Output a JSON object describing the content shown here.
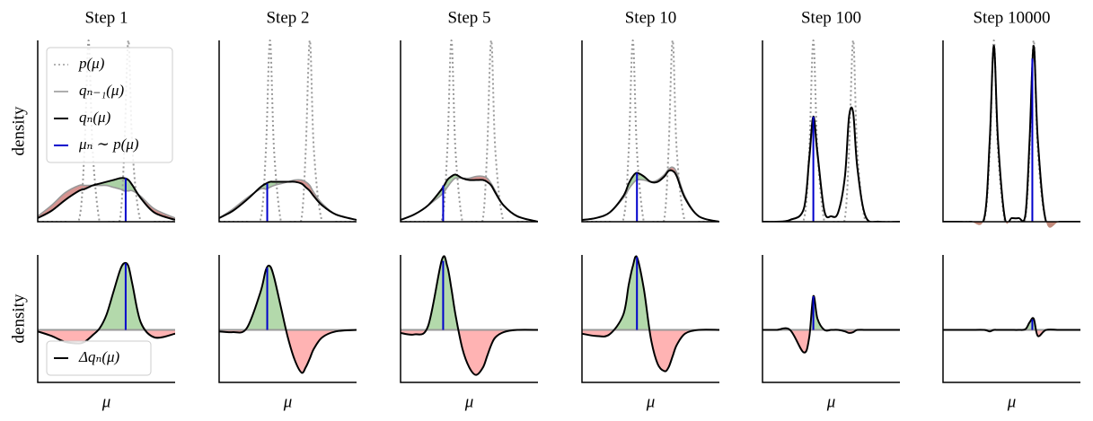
{
  "chart_data": [
    {
      "type": "line",
      "title": "Step 1",
      "y_label": "density",
      "legend": "upper left",
      "xlim": [
        0,
        1
      ],
      "ylim": [
        0,
        1
      ],
      "x": [
        0,
        0.1,
        0.2,
        0.3,
        0.34,
        0.37,
        0.4,
        0.45,
        0.5,
        0.55,
        0.6,
        0.63,
        0.66,
        0.69,
        0.75,
        0.85,
        1
      ],
      "series": [
        {
          "name": "p(μ)",
          "color": "#999999",
          "style": "dotted",
          "values": [
            0,
            0,
            0,
            0.01,
            0.39,
            1,
            0.39,
            0,
            0,
            0,
            0.02,
            0.39,
            1,
            0.39,
            0,
            0,
            0
          ]
        },
        {
          "name": "qₙ₋₁(μ)",
          "color": "#999999",
          "style": "solid",
          "values": [
            0.03,
            0.09,
            0.16,
            0.2,
            0.2,
            0.2,
            0.2,
            0.2,
            0.2,
            0.19,
            0.18,
            0.17,
            0.17,
            0.17,
            0.14,
            0.07,
            0.02
          ]
        },
        {
          "name": "qₙ(μ)",
          "color": "#000000",
          "style": "solid",
          "values": [
            0.02,
            0.06,
            0.12,
            0.17,
            0.18,
            0.19,
            0.2,
            0.21,
            0.22,
            0.23,
            0.24,
            0.24,
            0.23,
            0.2,
            0.13,
            0.05,
            0.01
          ]
        }
      ],
      "sample": {
        "name": "μₙ ∼ p(μ)",
        "color": "#0000cc",
        "x": 0.64,
        "value": 0.24
      }
    },
    {
      "type": "line",
      "title": "Step 2",
      "xlim": [
        0,
        1
      ],
      "ylim": [
        0,
        1
      ],
      "x": [
        0,
        0.1,
        0.2,
        0.3,
        0.34,
        0.37,
        0.4,
        0.45,
        0.5,
        0.55,
        0.6,
        0.63,
        0.66,
        0.69,
        0.75,
        0.85,
        1
      ],
      "series": [
        {
          "color": "#999999",
          "style": "dotted",
          "values": [
            0,
            0,
            0,
            0.01,
            0.39,
            1,
            0.39,
            0,
            0,
            0,
            0.02,
            0.39,
            1,
            0.39,
            0,
            0,
            0
          ]
        },
        {
          "color": "#999999",
          "style": "solid",
          "values": [
            0.02,
            0.07,
            0.13,
            0.18,
            0.18,
            0.19,
            0.2,
            0.21,
            0.22,
            0.23,
            0.23,
            0.22,
            0.2,
            0.16,
            0.1,
            0.04,
            0.01
          ]
        },
        {
          "color": "#000000",
          "style": "solid",
          "values": [
            0.02,
            0.06,
            0.12,
            0.19,
            0.21,
            0.22,
            0.22,
            0.22,
            0.22,
            0.22,
            0.21,
            0.19,
            0.17,
            0.14,
            0.09,
            0.04,
            0.01
          ]
        }
      ],
      "sample": {
        "color": "#0000cc",
        "x": 0.35,
        "value": 0.21
      }
    },
    {
      "type": "line",
      "title": "Step 5",
      "xlim": [
        0,
        1
      ],
      "ylim": [
        0,
        1
      ],
      "x": [
        0,
        0.1,
        0.2,
        0.3,
        0.34,
        0.37,
        0.4,
        0.45,
        0.5,
        0.55,
        0.6,
        0.63,
        0.66,
        0.69,
        0.75,
        0.85,
        1
      ],
      "series": [
        {
          "color": "#999999",
          "style": "dotted",
          "values": [
            0,
            0,
            0,
            0.01,
            0.39,
            1,
            0.39,
            0,
            0,
            0,
            0.02,
            0.39,
            1,
            0.39,
            0,
            0,
            0
          ]
        },
        {
          "color": "#999999",
          "style": "solid",
          "values": [
            0.01,
            0.04,
            0.09,
            0.15,
            0.19,
            0.22,
            0.24,
            0.24,
            0.24,
            0.25,
            0.25,
            0.24,
            0.21,
            0.17,
            0.09,
            0.03,
            0
          ]
        },
        {
          "color": "#000000",
          "style": "solid",
          "values": [
            0.01,
            0.04,
            0.09,
            0.18,
            0.23,
            0.25,
            0.26,
            0.24,
            0.23,
            0.23,
            0.23,
            0.22,
            0.2,
            0.16,
            0.09,
            0.03,
            0
          ]
        }
      ],
      "sample": {
        "color": "#0000cc",
        "x": 0.31,
        "value": 0.2
      }
    },
    {
      "type": "line",
      "title": "Step 10",
      "xlim": [
        0,
        1
      ],
      "ylim": [
        0,
        1
      ],
      "x": [
        0,
        0.1,
        0.2,
        0.3,
        0.34,
        0.37,
        0.4,
        0.45,
        0.5,
        0.55,
        0.6,
        0.63,
        0.66,
        0.69,
        0.75,
        0.85,
        1
      ],
      "series": [
        {
          "color": "#999999",
          "style": "dotted",
          "values": [
            0,
            0,
            0,
            0.01,
            0.39,
            1,
            0.39,
            0,
            0,
            0,
            0.02,
            0.39,
            1,
            0.39,
            0,
            0,
            0
          ]
        },
        {
          "color": "#999999",
          "style": "solid",
          "values": [
            0.01,
            0.02,
            0.05,
            0.13,
            0.18,
            0.21,
            0.23,
            0.23,
            0.22,
            0.23,
            0.26,
            0.29,
            0.3,
            0.27,
            0.14,
            0.03,
            0
          ]
        },
        {
          "color": "#000000",
          "style": "solid",
          "values": [
            0.01,
            0.02,
            0.05,
            0.14,
            0.21,
            0.25,
            0.27,
            0.25,
            0.22,
            0.22,
            0.25,
            0.28,
            0.28,
            0.25,
            0.13,
            0.03,
            0
          ]
        }
      ],
      "sample": {
        "color": "#0000cc",
        "x": 0.4,
        "value": 0.27
      }
    },
    {
      "type": "line",
      "title": "Step 100",
      "xlim": [
        0,
        1
      ],
      "ylim": [
        0,
        1
      ],
      "x": [
        0,
        0.1,
        0.2,
        0.3,
        0.34,
        0.37,
        0.4,
        0.45,
        0.5,
        0.55,
        0.6,
        0.63,
        0.66,
        0.69,
        0.75,
        0.85,
        1
      ],
      "series": [
        {
          "color": "#999999",
          "style": "dotted",
          "values": [
            0,
            0,
            0,
            0.01,
            0.39,
            1,
            0.39,
            0,
            0,
            0,
            0.02,
            0.39,
            1,
            0.39,
            0,
            0,
            0
          ]
        },
        {
          "color": "#999999",
          "style": "solid",
          "values": [
            0,
            0,
            0.01,
            0.07,
            0.33,
            0.54,
            0.36,
            0.06,
            0.03,
            0.05,
            0.25,
            0.58,
            0.6,
            0.3,
            0.03,
            0,
            0
          ]
        },
        {
          "color": "#000000",
          "style": "solid",
          "values": [
            0,
            0,
            0.01,
            0.07,
            0.35,
            0.58,
            0.38,
            0.06,
            0.03,
            0.05,
            0.25,
            0.58,
            0.6,
            0.3,
            0.03,
            0,
            0
          ]
        }
      ],
      "sample": {
        "color": "#0000cc",
        "x": 0.37,
        "value": 0.58
      }
    },
    {
      "type": "line",
      "title": "Step 10000",
      "xlim": [
        0,
        1
      ],
      "ylim": [
        0,
        1
      ],
      "x": [
        0,
        0.1,
        0.2,
        0.3,
        0.34,
        0.37,
        0.4,
        0.45,
        0.5,
        0.55,
        0.6,
        0.63,
        0.66,
        0.69,
        0.75,
        0.85,
        1
      ],
      "series": [
        {
          "color": "#999999",
          "style": "dotted",
          "values": [
            0,
            0,
            0,
            0.01,
            0.39,
            1,
            0.39,
            0,
            0,
            0,
            0.02,
            0.39,
            1,
            0.39,
            0,
            0,
            0
          ]
        },
        {
          "color": "#999999",
          "style": "solid",
          "values": [
            0,
            0,
            0,
            0.02,
            0.45,
            0.97,
            0.45,
            0.02,
            0.02,
            0.02,
            0.04,
            0.44,
            0.93,
            0.46,
            0,
            0,
            0
          ]
        },
        {
          "color": "#000000",
          "style": "solid",
          "values": [
            0,
            0,
            0,
            0.02,
            0.45,
            0.97,
            0.45,
            0.02,
            0.02,
            0.02,
            0.04,
            0.45,
            0.97,
            0.45,
            0,
            0,
            0
          ]
        }
      ],
      "sample": {
        "color": "#0000cc",
        "x": 0.65,
        "value": 0.9
      }
    },
    {
      "type": "line",
      "y_label": "density",
      "x_label": "μ",
      "legend": "lower left",
      "xlim": [
        0,
        1
      ],
      "ylim": [
        -0.7,
        1
      ],
      "x": [
        0,
        0.1,
        0.2,
        0.3,
        0.34,
        0.37,
        0.4,
        0.45,
        0.5,
        0.55,
        0.6,
        0.63,
        0.66,
        0.69,
        0.75,
        0.85,
        1
      ],
      "series": [
        {
          "name": "Δqₙ(μ)",
          "color": "#000000",
          "values": [
            -0.02,
            -0.08,
            -0.16,
            -0.18,
            -0.16,
            -0.12,
            -0.07,
            0.02,
            0.2,
            0.5,
            0.8,
            0.89,
            0.85,
            0.6,
            0.1,
            -0.1,
            -0.05
          ]
        }
      ],
      "sample": {
        "color": "#0000cc",
        "x": 0.64,
        "value": 0.89
      }
    },
    {
      "type": "line",
      "x_label": "μ",
      "xlim": [
        0,
        1
      ],
      "ylim": [
        -0.7,
        1
      ],
      "x": [
        0,
        0.1,
        0.2,
        0.3,
        0.34,
        0.37,
        0.4,
        0.45,
        0.5,
        0.55,
        0.6,
        0.63,
        0.66,
        0.69,
        0.75,
        0.85,
        1
      ],
      "series": [
        {
          "color": "#000000",
          "values": [
            -0.02,
            -0.03,
            0.02,
            0.5,
            0.8,
            0.85,
            0.7,
            0.3,
            -0.1,
            -0.4,
            -0.57,
            -0.5,
            -0.38,
            -0.25,
            -0.1,
            -0.02,
            0
          ]
        }
      ],
      "sample": {
        "color": "#0000cc",
        "x": 0.35,
        "value": 0.83
      }
    },
    {
      "type": "line",
      "x_label": "μ",
      "xlim": [
        0,
        1
      ],
      "ylim": [
        -0.7,
        1
      ],
      "x": [
        0,
        0.1,
        0.2,
        0.3,
        0.34,
        0.37,
        0.4,
        0.45,
        0.5,
        0.55,
        0.6,
        0.63,
        0.66,
        0.69,
        0.75,
        0.85,
        1
      ],
      "series": [
        {
          "color": "#000000",
          "values": [
            -0.04,
            -0.06,
            0.05,
            0.93,
            0.85,
            0.55,
            0.2,
            -0.25,
            -0.5,
            -0.6,
            -0.5,
            -0.35,
            -0.2,
            -0.1,
            -0.03,
            0,
            0
          ]
        }
      ],
      "sample": {
        "color": "#0000cc",
        "x": 0.31,
        "value": 0.92
      }
    },
    {
      "type": "line",
      "x_label": "μ",
      "xlim": [
        0,
        1
      ],
      "ylim": [
        -0.7,
        1
      ],
      "x": [
        0,
        0.1,
        0.2,
        0.3,
        0.34,
        0.37,
        0.4,
        0.45,
        0.5,
        0.55,
        0.6,
        0.63,
        0.66,
        0.69,
        0.75,
        0.85,
        1
      ],
      "series": [
        {
          "color": "#000000",
          "values": [
            -0.05,
            -0.08,
            -0.06,
            0.2,
            0.6,
            0.85,
            0.97,
            0.55,
            -0.1,
            -0.45,
            -0.55,
            -0.5,
            -0.35,
            -0.2,
            -0.05,
            0,
            0
          ]
        }
      ],
      "sample": {
        "color": "#0000cc",
        "x": 0.4,
        "value": 0.97
      }
    },
    {
      "type": "line",
      "x_label": "μ",
      "xlim": [
        0,
        1
      ],
      "ylim": [
        -0.7,
        1
      ],
      "x": [
        0,
        0.1,
        0.2,
        0.3,
        0.34,
        0.37,
        0.4,
        0.45,
        0.5,
        0.55,
        0.6,
        0.63,
        0.66,
        0.69,
        0.75,
        0.85,
        1
      ],
      "series": [
        {
          "color": "#000000",
          "values": [
            0,
            0,
            0,
            -0.3,
            -0.1,
            0.45,
            0.15,
            0,
            0,
            0,
            -0.02,
            -0.04,
            -0.03,
            0,
            0,
            0,
            0
          ]
        }
      ],
      "sample": {
        "color": "#0000cc",
        "x": 0.37,
        "value": 0.45
      }
    },
    {
      "type": "line",
      "x_label": "μ",
      "xlim": [
        0,
        1
      ],
      "ylim": [
        -0.7,
        1
      ],
      "x": [
        0,
        0.1,
        0.2,
        0.3,
        0.34,
        0.37,
        0.4,
        0.45,
        0.5,
        0.55,
        0.6,
        0.63,
        0.66,
        0.69,
        0.75,
        0.85,
        1
      ],
      "series": [
        {
          "color": "#000000",
          "values": [
            0,
            0,
            0,
            0,
            -0.02,
            0,
            0,
            0,
            0,
            0,
            0.01,
            0.1,
            0.15,
            -0.08,
            0,
            0,
            0
          ]
        }
      ],
      "sample": {
        "color": "#0000cc",
        "x": 0.65,
        "value": 0.14
      }
    }
  ]
}
